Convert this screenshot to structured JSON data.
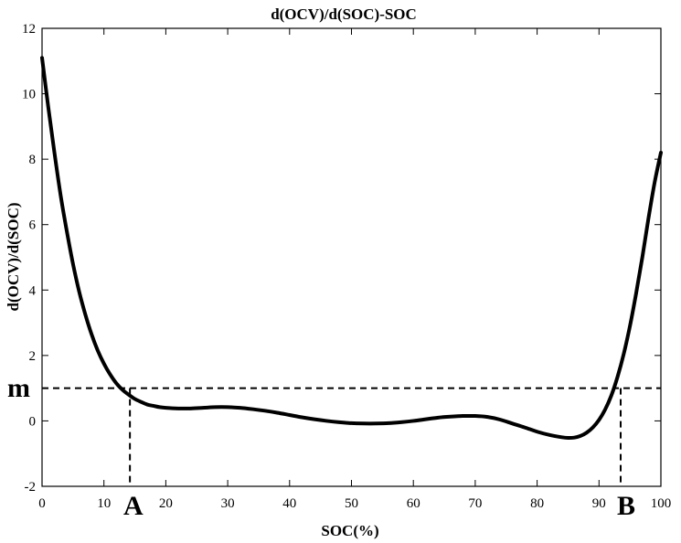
{
  "chart_data": {
    "type": "line",
    "title": "d(OCV)/d(SOC)-SOC",
    "xlabel": "SOC(%)",
    "ylabel": "d(OCV)/d(SOC)",
    "xlim": [
      0,
      100
    ],
    "ylim": [
      -2,
      12
    ],
    "xticks": [
      0,
      10,
      20,
      30,
      40,
      50,
      60,
      70,
      80,
      90,
      100
    ],
    "yticks": [
      -2,
      0,
      2,
      4,
      6,
      8,
      10,
      12
    ],
    "grid": false,
    "series": [
      {
        "x": [
          0,
          1,
          2,
          3,
          4,
          5,
          6,
          7,
          8,
          9,
          10,
          11,
          12,
          13,
          14,
          15,
          16,
          17,
          18,
          19,
          20,
          22,
          24,
          26,
          28,
          30,
          32,
          34,
          36,
          38,
          40,
          42,
          44,
          46,
          48,
          50,
          52,
          54,
          56,
          58,
          60,
          62,
          64,
          66,
          68,
          70,
          72,
          74,
          76,
          78,
          80,
          82,
          84,
          85,
          86,
          87,
          88,
          89,
          90,
          91,
          92,
          93,
          94,
          95,
          96,
          97,
          98,
          99,
          100
        ],
        "y": [
          11.1,
          9.6,
          8.2,
          6.9,
          5.8,
          4.8,
          3.95,
          3.25,
          2.65,
          2.15,
          1.75,
          1.42,
          1.15,
          0.95,
          0.8,
          0.67,
          0.58,
          0.5,
          0.46,
          0.42,
          0.4,
          0.38,
          0.38,
          0.4,
          0.42,
          0.42,
          0.4,
          0.36,
          0.31,
          0.25,
          0.18,
          0.11,
          0.05,
          0.0,
          -0.04,
          -0.07,
          -0.08,
          -0.08,
          -0.07,
          -0.04,
          0.0,
          0.05,
          0.1,
          0.13,
          0.15,
          0.15,
          0.12,
          0.04,
          -0.08,
          -0.2,
          -0.33,
          -0.43,
          -0.5,
          -0.52,
          -0.51,
          -0.46,
          -0.36,
          -0.2,
          0.03,
          0.35,
          0.78,
          1.35,
          2.05,
          2.9,
          3.9,
          5.0,
          6.2,
          7.3,
          8.2
        ]
      }
    ],
    "reference_lines": {
      "m_value": 1.0,
      "A_soc": 14.2,
      "B_soc": 93.5
    },
    "annotations": {
      "m_label": "m",
      "A_label": "A",
      "B_label": "B"
    }
  }
}
